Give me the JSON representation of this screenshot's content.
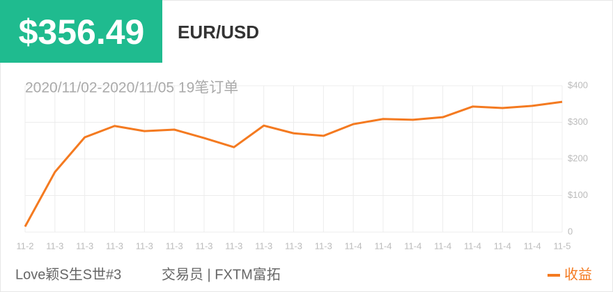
{
  "header": {
    "price": "$356.49",
    "pair": "EUR/USD"
  },
  "chart_data": {
    "type": "line",
    "subtitle": "2020/11/02-2020/11/05 19笔订单",
    "categories": [
      "11-2",
      "11-3",
      "11-3",
      "11-3",
      "11-3",
      "11-3",
      "11-3",
      "11-3",
      "11-3",
      "11-3",
      "11-3",
      "11-4",
      "11-4",
      "11-4",
      "11-4",
      "11-4",
      "11-4",
      "11-4",
      "11-5"
    ],
    "series": [
      {
        "name": "收益",
        "color": "#f47a20",
        "values": [
          15,
          164,
          259,
          290,
          276,
          280,
          257,
          232,
          291,
          270,
          263,
          295,
          309,
          307,
          314,
          343,
          339,
          345,
          356
        ]
      }
    ],
    "ylim": [
      0,
      400
    ],
    "yticks": [
      0,
      {
        "value": 100,
        "label": "$100"
      },
      {
        "value": 200,
        "label": "$200"
      },
      {
        "value": 300,
        "label": "$300"
      },
      {
        "value": 400,
        "label": "$400"
      }
    ],
    "grid": true,
    "legend": "bottom-right"
  },
  "footer": {
    "trader": "Love颖S生S世#3",
    "broker": "交易员 | FXTM富拓"
  }
}
